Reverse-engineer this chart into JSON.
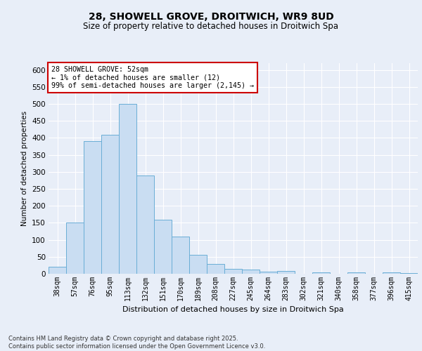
{
  "title_line1": "28, SHOWELL GROVE, DROITWICH, WR9 8UD",
  "title_line2": "Size of property relative to detached houses in Droitwich Spa",
  "xlabel": "Distribution of detached houses by size in Droitwich Spa",
  "ylabel": "Number of detached properties",
  "categories": [
    "38sqm",
    "57sqm",
    "76sqm",
    "95sqm",
    "113sqm",
    "132sqm",
    "151sqm",
    "170sqm",
    "189sqm",
    "208sqm",
    "227sqm",
    "245sqm",
    "264sqm",
    "283sqm",
    "302sqm",
    "321sqm",
    "340sqm",
    "358sqm",
    "377sqm",
    "396sqm",
    "415sqm"
  ],
  "values": [
    20,
    150,
    390,
    410,
    500,
    290,
    160,
    110,
    55,
    28,
    15,
    12,
    7,
    9,
    0,
    4,
    0,
    5,
    0,
    4,
    3
  ],
  "bar_color": "#c9ddf2",
  "bar_edge_color": "#6aaed6",
  "ylim": [
    0,
    620
  ],
  "yticks": [
    0,
    50,
    100,
    150,
    200,
    250,
    300,
    350,
    400,
    450,
    500,
    550,
    600
  ],
  "annotation_text": "28 SHOWELL GROVE: 52sqm\n← 1% of detached houses are smaller (12)\n99% of semi-detached houses are larger (2,145) →",
  "annotation_box_color": "#ffffff",
  "annotation_box_edge": "#cc0000",
  "footer_text": "Contains HM Land Registry data © Crown copyright and database right 2025.\nContains public sector information licensed under the Open Government Licence v3.0.",
  "bg_color": "#e8eef8",
  "plot_bg_color": "#e8eef8",
  "grid_color": "#ffffff",
  "title1_fontsize": 10,
  "title2_fontsize": 8.5,
  "ylabel_fontsize": 7.5,
  "xlabel_fontsize": 8,
  "ytick_fontsize": 7.5,
  "xtick_fontsize": 7
}
